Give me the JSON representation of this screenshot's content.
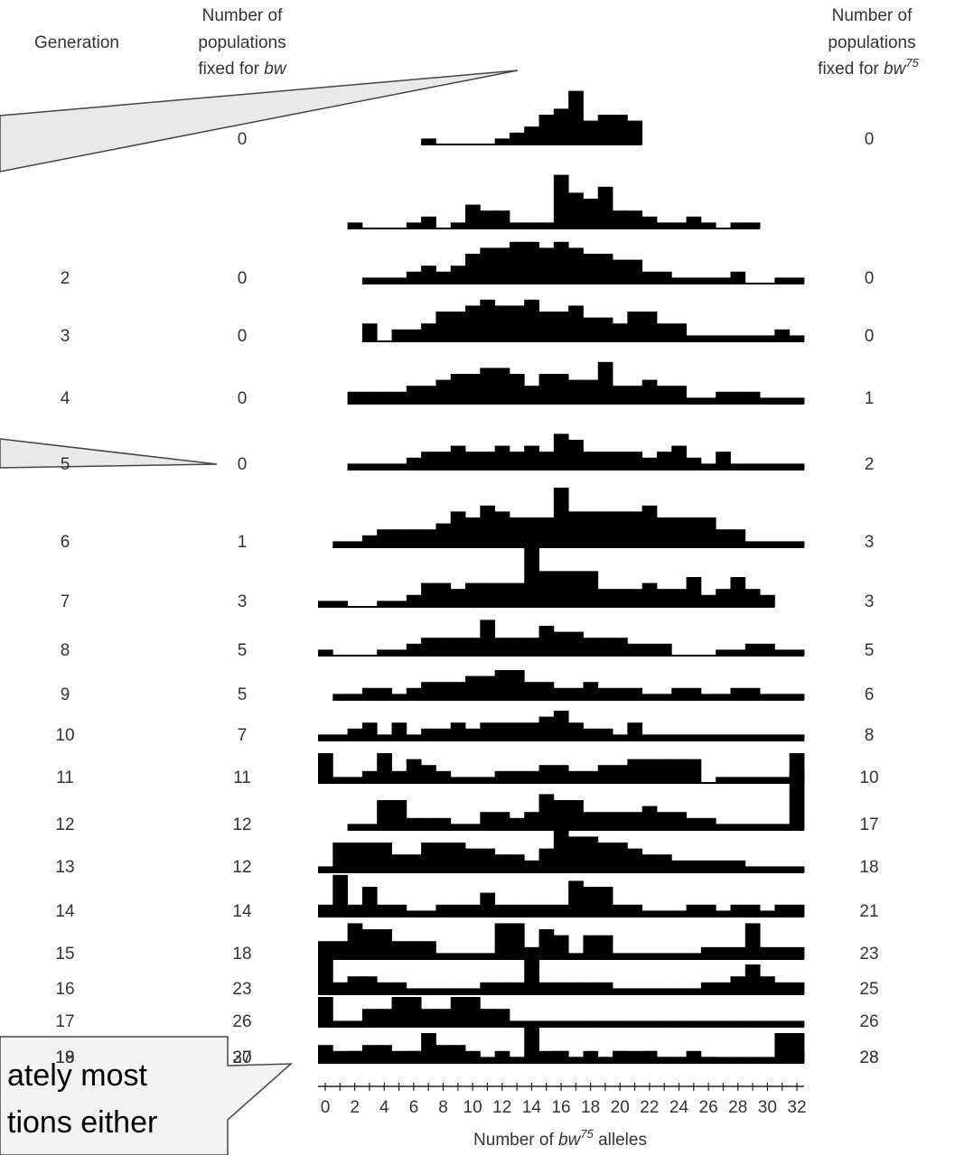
{
  "headers": {
    "generation": "Generation",
    "fixed_bw": [
      "Number of",
      "populations",
      "fixed for "
    ],
    "fixed_bw_italic": "bw",
    "fixed_bw75": [
      "Number of",
      "populations",
      "fixed for "
    ],
    "fixed_bw75_italic": "bw",
    "fixed_bw75_sup": "75"
  },
  "axis": {
    "ticks": [
      "0",
      "2",
      "4",
      "6",
      "8",
      "10",
      "12",
      "14",
      "16",
      "18",
      "20",
      "22",
      "24",
      "26",
      "28",
      "30",
      "32"
    ],
    "xlabel_pre": "Number of ",
    "xlabel_italic": "bw",
    "xlabel_sup": "75",
    "xlabel_post": " alleles"
  },
  "callouts": [
    {
      "text_lines": [
        "ately most",
        "tions either"
      ]
    }
  ],
  "chart_data": {
    "type": "bar",
    "title": "",
    "xlabel": "Number of bw75 alleles",
    "ylabel": "Generation",
    "xlim": [
      0,
      32
    ],
    "x": [
      0,
      1,
      2,
      3,
      4,
      5,
      6,
      7,
      8,
      9,
      10,
      11,
      12,
      13,
      14,
      15,
      16,
      17,
      18,
      19,
      20,
      21,
      22,
      23,
      24,
      25,
      26,
      27,
      28,
      29,
      30,
      31,
      32
    ],
    "rows": [
      {
        "generation": "",
        "fixed_bw": "0",
        "fixed_bw75": "0",
        "values": [
          0,
          0,
          0,
          0,
          0,
          0,
          0,
          1,
          0,
          0,
          0,
          0,
          1,
          2,
          3,
          5,
          6,
          9,
          4,
          5,
          5,
          4,
          0,
          0,
          0,
          0,
          0,
          0,
          0,
          0,
          0,
          0,
          0
        ]
      },
      {
        "generation": "",
        "fixed_bw": "",
        "fixed_bw75": "",
        "values": [
          0,
          0,
          1,
          0,
          0,
          0,
          1,
          2,
          0,
          1,
          4,
          3,
          3,
          1,
          1,
          1,
          9,
          6,
          5,
          7,
          3,
          3,
          2,
          1,
          1,
          2,
          1,
          0,
          1,
          1,
          0,
          0,
          0
        ]
      },
      {
        "generation": "2",
        "fixed_bw": "0",
        "fixed_bw75": "0",
        "values": [
          0,
          0,
          0,
          1,
          1,
          1,
          2,
          3,
          2,
          3,
          5,
          6,
          6,
          7,
          7,
          6,
          7,
          6,
          5,
          5,
          4,
          4,
          2,
          2,
          1,
          1,
          1,
          1,
          2,
          0,
          0,
          1,
          1
        ]
      },
      {
        "generation": "3",
        "fixed_bw": "0",
        "fixed_bw75": "0",
        "values": [
          0,
          0,
          0,
          3,
          0,
          2,
          2,
          3,
          5,
          5,
          6,
          7,
          6,
          6,
          7,
          5,
          5,
          6,
          4,
          4,
          3,
          5,
          5,
          3,
          3,
          1,
          1,
          1,
          1,
          1,
          1,
          2,
          1
        ]
      },
      {
        "generation": "4",
        "fixed_bw": "0",
        "fixed_bw75": "1",
        "values": [
          0,
          0,
          2,
          2,
          2,
          2,
          3,
          3,
          4,
          5,
          5,
          6,
          6,
          5,
          3,
          5,
          5,
          4,
          4,
          7,
          3,
          3,
          4,
          3,
          3,
          1,
          1,
          2,
          2,
          2,
          1,
          1,
          1
        ]
      },
      {
        "generation": "5",
        "fixed_bw": "0",
        "fixed_bw75": "2",
        "values": [
          0,
          0,
          1,
          1,
          1,
          1,
          2,
          3,
          3,
          4,
          3,
          3,
          4,
          3,
          4,
          3,
          6,
          5,
          3,
          3,
          3,
          3,
          2,
          3,
          4,
          2,
          1,
          3,
          1,
          1,
          1,
          1,
          1
        ]
      },
      {
        "generation": "6",
        "fixed_bw": "1",
        "fixed_bw75": "3",
        "values": [
          0,
          1,
          1,
          2,
          3,
          3,
          3,
          3,
          4,
          6,
          5,
          7,
          6,
          5,
          5,
          5,
          10,
          6,
          6,
          6,
          6,
          6,
          7,
          5,
          5,
          5,
          5,
          3,
          3,
          1,
          1,
          1,
          1
        ]
      },
      {
        "generation": "7",
        "fixed_bw": "3",
        "fixed_bw75": "3",
        "values": [
          1,
          1,
          0,
          0,
          1,
          1,
          2,
          4,
          4,
          3,
          4,
          4,
          4,
          4,
          10,
          6,
          6,
          6,
          6,
          3,
          3,
          3,
          4,
          3,
          3,
          5,
          2,
          3,
          5,
          3,
          2,
          0,
          0
        ]
      },
      {
        "generation": "8",
        "fixed_bw": "5",
        "fixed_bw75": "5",
        "values": [
          1,
          0,
          0,
          0,
          1,
          1,
          2,
          3,
          3,
          3,
          3,
          6,
          3,
          3,
          3,
          5,
          4,
          4,
          3,
          3,
          3,
          2,
          2,
          2,
          0,
          0,
          0,
          1,
          1,
          2,
          2,
          1,
          1
        ]
      },
      {
        "generation": "9",
        "fixed_bw": "5",
        "fixed_bw75": "6",
        "values": [
          0,
          1,
          1,
          2,
          2,
          1,
          2,
          3,
          3,
          3,
          4,
          4,
          5,
          5,
          3,
          3,
          2,
          2,
          3,
          2,
          2,
          2,
          1,
          1,
          2,
          2,
          1,
          1,
          2,
          2,
          1,
          1,
          1
        ]
      },
      {
        "generation": "10",
        "fixed_bw": "7",
        "fixed_bw75": "8",
        "values": [
          1,
          1,
          2,
          3,
          1,
          3,
          1,
          2,
          2,
          3,
          2,
          3,
          3,
          3,
          3,
          4,
          5,
          3,
          2,
          2,
          1,
          3,
          1,
          1,
          1,
          1,
          1,
          1,
          1,
          1,
          1,
          1,
          1
        ]
      },
      {
        "generation": "11",
        "fixed_bw": "11",
        "fixed_bw75": "10",
        "values": [
          5,
          1,
          1,
          2,
          5,
          2,
          4,
          3,
          2,
          1,
          1,
          1,
          2,
          2,
          2,
          3,
          3,
          2,
          2,
          3,
          3,
          4,
          4,
          4,
          4,
          4,
          0,
          1,
          1,
          1,
          1,
          1,
          5
        ]
      },
      {
        "generation": "12",
        "fixed_bw": "12",
        "fixed_bw75": "17",
        "values": [
          0,
          0,
          1,
          1,
          5,
          5,
          2,
          2,
          2,
          1,
          1,
          3,
          3,
          2,
          3,
          6,
          5,
          5,
          3,
          3,
          3,
          3,
          4,
          3,
          3,
          2,
          2,
          1,
          1,
          1,
          1,
          1,
          10
        ]
      },
      {
        "generation": "13",
        "fixed_bw": "12",
        "fixed_bw75": "18",
        "values": [
          1,
          5,
          5,
          5,
          5,
          3,
          3,
          5,
          5,
          5,
          4,
          4,
          3,
          3,
          2,
          4,
          8,
          6,
          6,
          5,
          5,
          4,
          3,
          3,
          2,
          2,
          2,
          2,
          2,
          1,
          1,
          1,
          1
        ]
      },
      {
        "generation": "14",
        "fixed_bw": "14",
        "fixed_bw75": "21",
        "values": [
          2,
          7,
          2,
          5,
          2,
          2,
          1,
          1,
          2,
          2,
          2,
          4,
          2,
          2,
          2,
          2,
          2,
          6,
          5,
          5,
          2,
          2,
          1,
          1,
          1,
          2,
          2,
          1,
          2,
          2,
          1,
          2,
          2
        ]
      },
      {
        "generation": "15",
        "fixed_bw": "18",
        "fixed_bw75": "23",
        "values": [
          3,
          3,
          6,
          5,
          5,
          3,
          3,
          3,
          1,
          1,
          1,
          1,
          6,
          6,
          2,
          5,
          4,
          1,
          4,
          4,
          1,
          1,
          1,
          1,
          1,
          1,
          2,
          2,
          2,
          6,
          2,
          2,
          2
        ]
      },
      {
        "generation": "16",
        "fixed_bw": "23",
        "fixed_bw75": "25",
        "values": [
          8,
          2,
          3,
          3,
          2,
          2,
          1,
          1,
          1,
          1,
          1,
          2,
          2,
          2,
          7,
          2,
          2,
          2,
          2,
          2,
          1,
          1,
          1,
          1,
          1,
          1,
          2,
          2,
          3,
          5,
          3,
          2,
          2
        ]
      },
      {
        "generation": "17",
        "fixed_bw": "26",
        "fixed_bw75": "26",
        "values": [
          5,
          1,
          1,
          3,
          3,
          5,
          5,
          3,
          3,
          5,
          5,
          3,
          3,
          1,
          1,
          1,
          1,
          1,
          1,
          1,
          1,
          1,
          1,
          1,
          1,
          1,
          1,
          1,
          1,
          1,
          1,
          1,
          1
        ]
      },
      {
        "generation": "18",
        "fixed_bw": "27",
        "fixed_bw75": "28",
        "values": [
          1,
          1,
          2,
          1,
          2,
          1,
          2,
          1,
          2,
          2,
          2,
          0,
          2,
          1,
          1,
          1,
          2,
          1,
          2,
          1,
          2,
          1,
          2,
          1,
          1,
          2,
          1,
          1,
          1,
          1,
          1,
          1,
          2
        ]
      },
      {
        "generation": "19",
        "fixed_bw": "30",
        "fixed_bw75": "28",
        "values": [
          3,
          2,
          2,
          3,
          3,
          2,
          2,
          5,
          3,
          3,
          1,
          1,
          1,
          1,
          6,
          2,
          2,
          1,
          1,
          1,
          2,
          2,
          2,
          1,
          1,
          1,
          1,
          0,
          0,
          0,
          0,
          5,
          5
        ]
      }
    ]
  }
}
